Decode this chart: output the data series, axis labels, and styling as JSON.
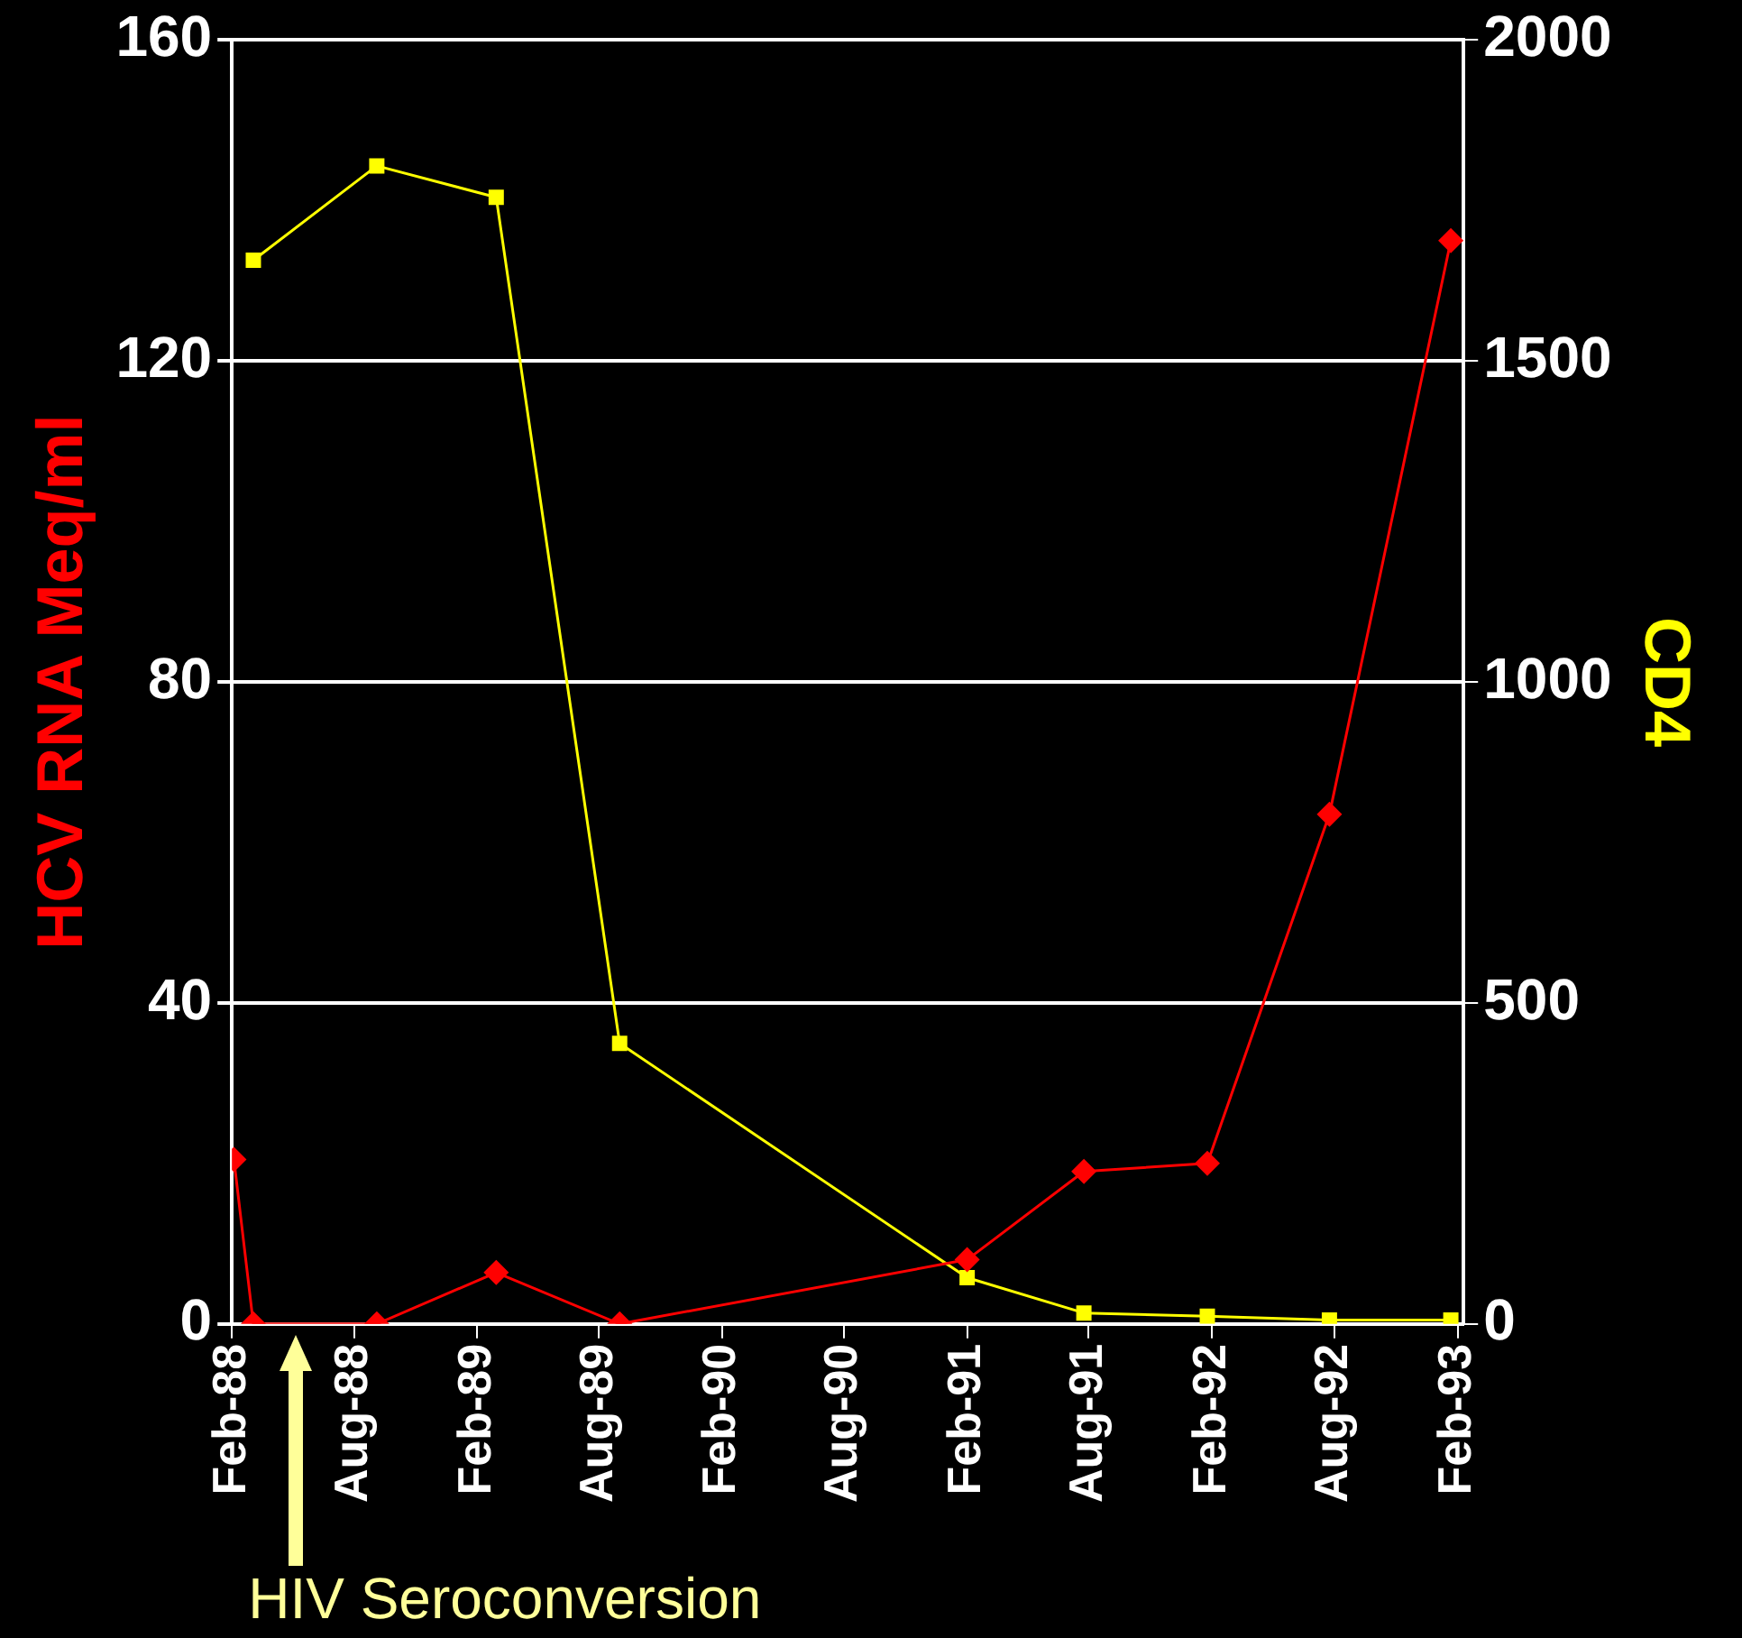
{
  "chart_data": {
    "type": "line",
    "ylabel": "HCV RNA Meq/ml",
    "y2label": "CD4",
    "xlim": [
      "1988-02-01",
      "1993-02-10"
    ],
    "xticks": [
      {
        "value": "1988-02",
        "label": "Feb-88"
      },
      {
        "value": "1988-08",
        "label": "Aug-88"
      },
      {
        "value": "1989-02",
        "label": "Feb-89"
      },
      {
        "value": "1989-08",
        "label": "Aug-89"
      },
      {
        "value": "1990-02",
        "label": "Feb-90"
      },
      {
        "value": "1990-08",
        "label": "Aug-90"
      },
      {
        "value": "1991-02",
        "label": "Feb-91"
      },
      {
        "value": "1991-08",
        "label": "Aug-91"
      },
      {
        "value": "1992-02",
        "label": "Feb-92"
      },
      {
        "value": "1992-08",
        "label": "Aug-92"
      },
      {
        "value": "1993-02",
        "label": "Feb-93"
      }
    ],
    "ylim": [
      0,
      160
    ],
    "yticks": [
      0,
      40,
      80,
      120,
      160
    ],
    "y2lim": [
      0,
      2000
    ],
    "y2ticks": [
      0,
      500,
      1000,
      1500,
      2000
    ],
    "grid": "y",
    "legend": false,
    "line_style": "solid",
    "series": [
      {
        "color": "#ff0000",
        "marker": "diamond",
        "x": [
          "1988-02-04",
          "1988-03-04",
          "1988-09-04",
          "1989-03-01",
          "1989-09-01",
          "1991-02-01",
          "1991-07-25",
          "1992-01-25",
          "1992-07-25",
          "1993-01-22"
        ],
        "values": [
          20.5,
          0,
          0,
          6.4,
          0,
          8,
          19,
          20,
          63.5,
          135
        ]
      },
      {
        "color": "#ffff00",
        "marker": "square",
        "axis": "y2",
        "x": [
          "1988-03-04",
          "1988-09-04",
          "1989-03-01",
          "1989-09-01",
          "1991-02-01",
          "1991-07-25",
          "1992-01-25",
          "1992-07-25",
          "1993-01-22"
        ],
        "values": [
          1657,
          1804,
          1755,
          437,
          72,
          17,
          12,
          6,
          6
        ]
      }
    ],
    "annotations": [
      "HIV Seroconversion"
    ]
  }
}
